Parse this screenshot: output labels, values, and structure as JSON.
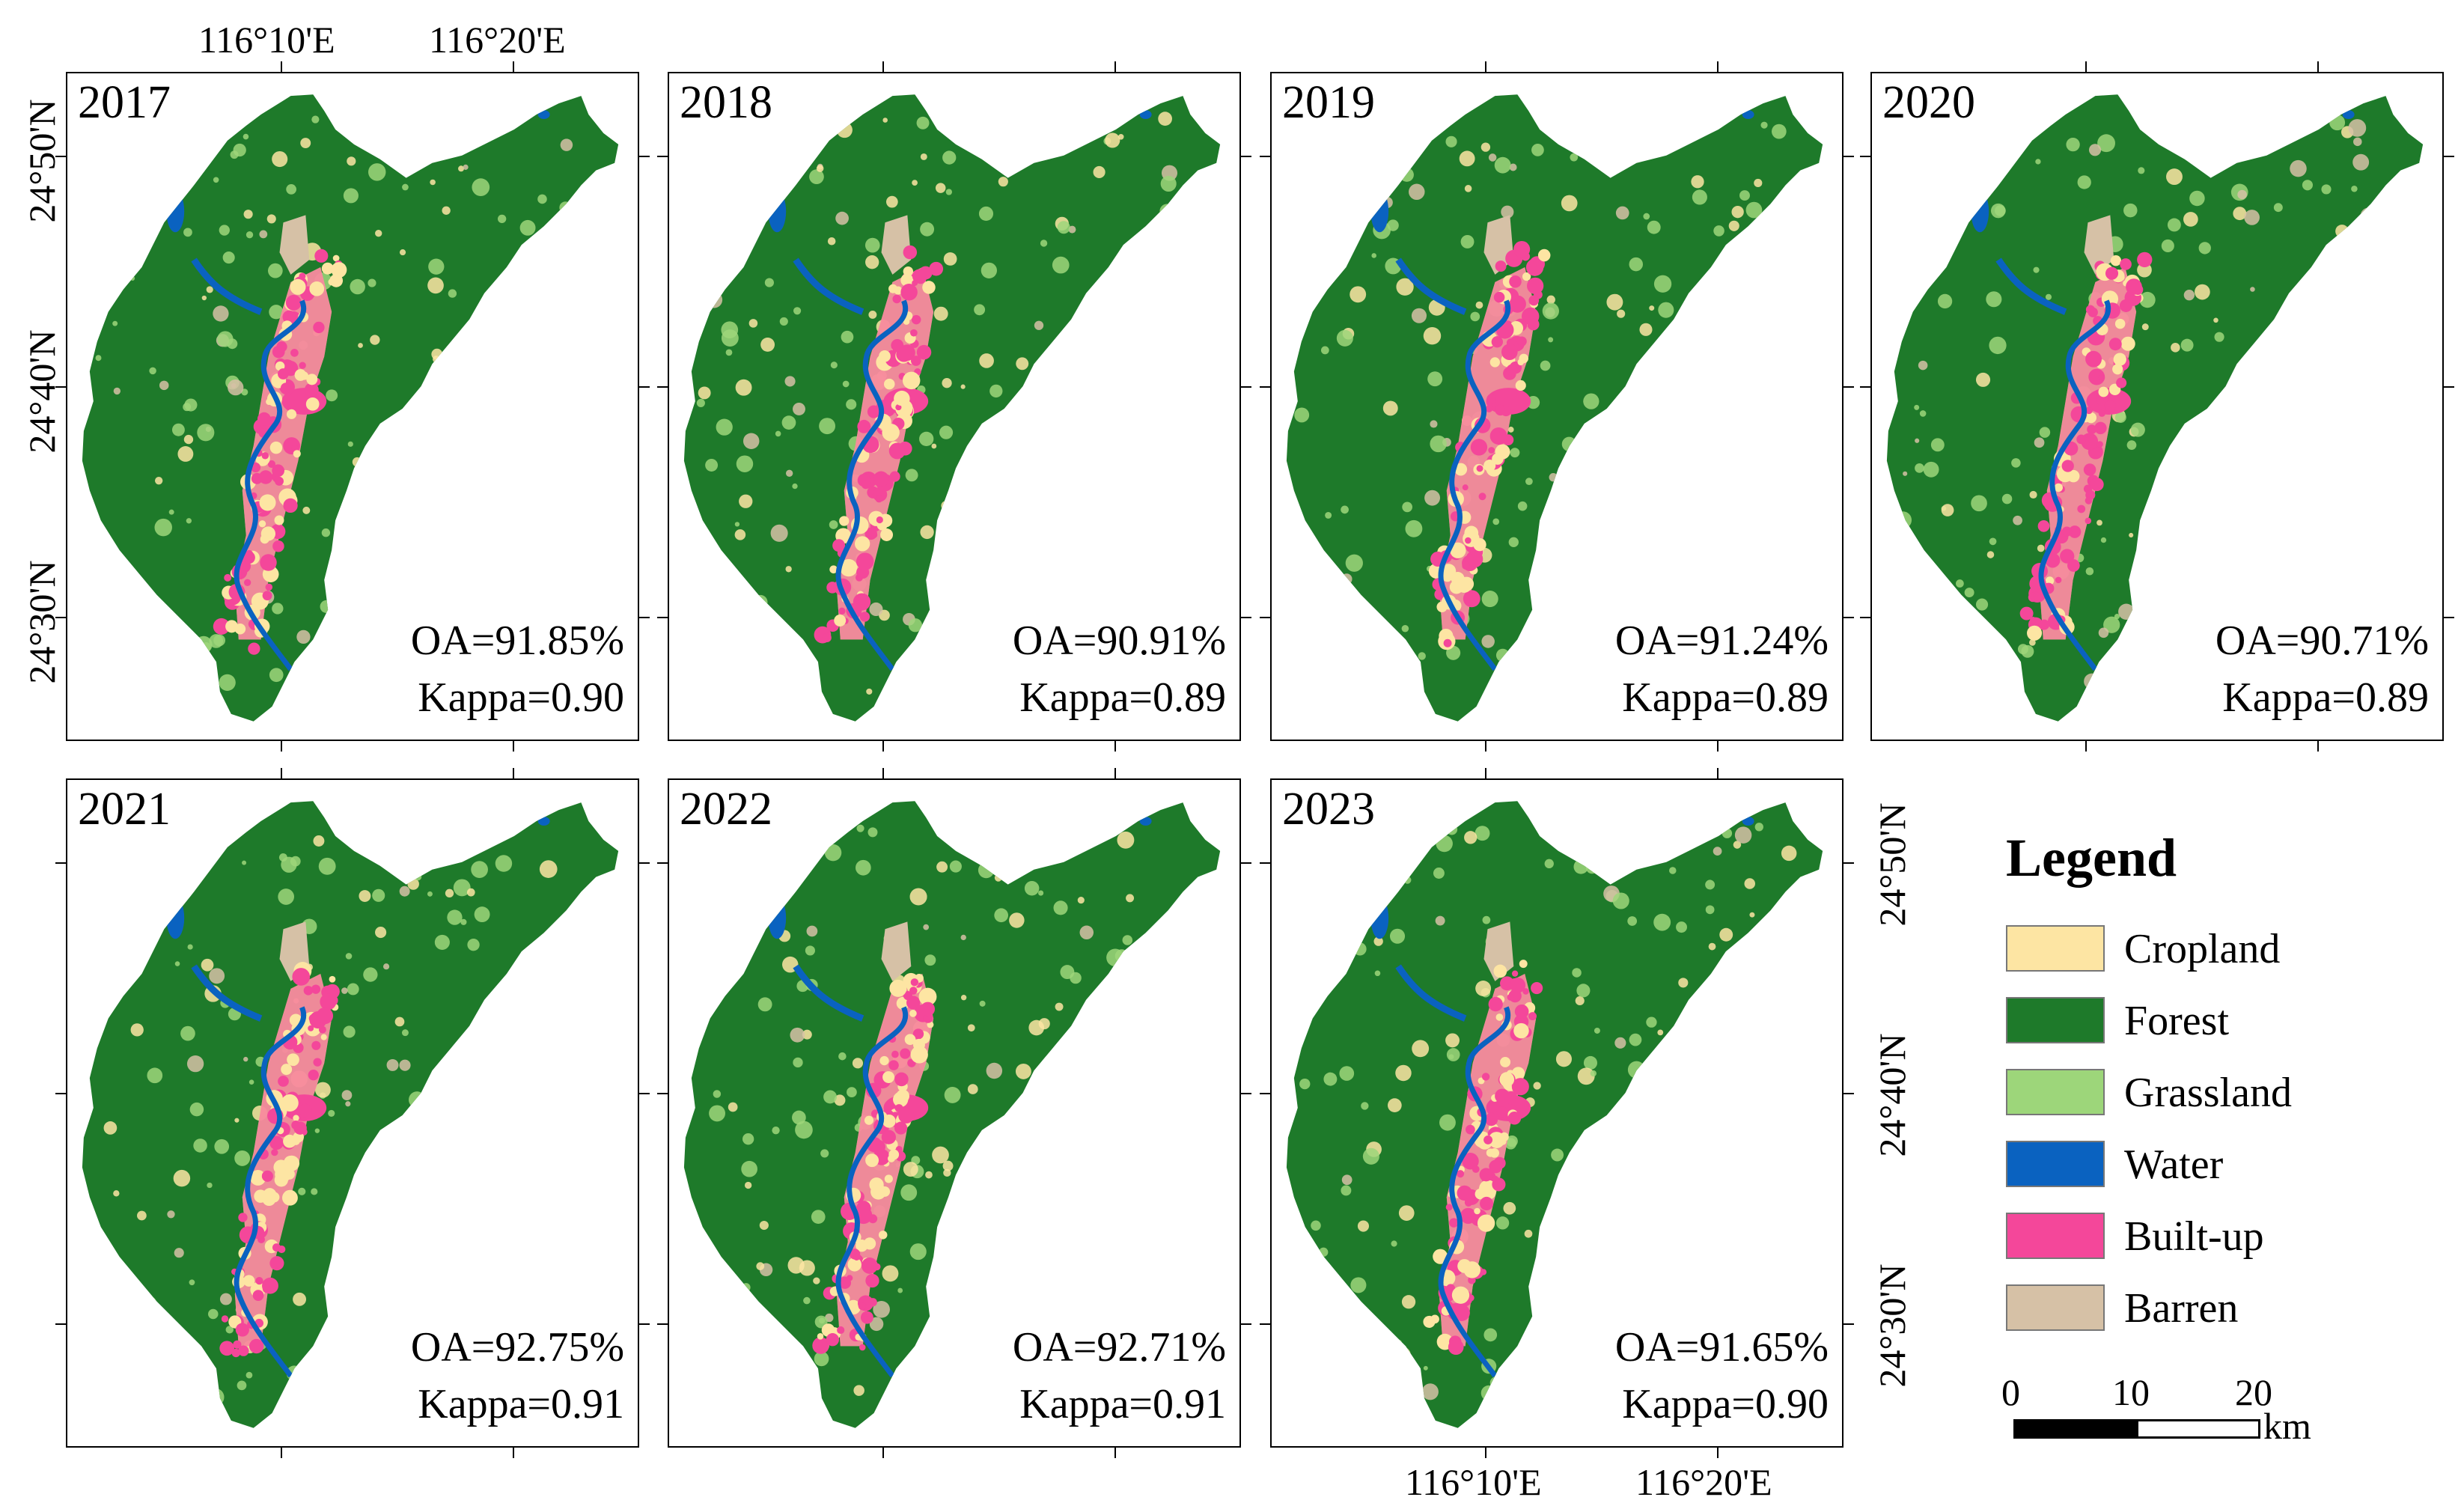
{
  "panels": [
    {
      "year": "2017",
      "oa": "OA=91.85%",
      "kappa": "Kappa=0.90"
    },
    {
      "year": "2018",
      "oa": "OA=90.91%",
      "kappa": "Kappa=0.89"
    },
    {
      "year": "2019",
      "oa": "OA=91.24%",
      "kappa": "Kappa=0.89"
    },
    {
      "year": "2020",
      "oa": "OA=90.71%",
      "kappa": "Kappa=0.89"
    },
    {
      "year": "2021",
      "oa": "OA=92.75%",
      "kappa": "Kappa=0.91"
    },
    {
      "year": "2022",
      "oa": "OA=92.71%",
      "kappa": "Kappa=0.91"
    },
    {
      "year": "2023",
      "oa": "OA=91.65%",
      "kappa": "Kappa=0.90"
    }
  ],
  "graticule": {
    "lon_labels": [
      "116°10'E",
      "116°20'E"
    ],
    "lat_labels": [
      "24°50'N",
      "24°40'N",
      "24°30'N"
    ]
  },
  "legend": {
    "title": "Legend",
    "items": [
      {
        "label": "Cropland",
        "color": "#fde5a3"
      },
      {
        "label": "Forest",
        "color": "#1e7a2a"
      },
      {
        "label": "Grassland",
        "color": "#9dd67a"
      },
      {
        "label": "Water",
        "color": "#0a62c0"
      },
      {
        "label": "Built-up",
        "color": "#f4479a"
      },
      {
        "label": "Barren",
        "color": "#d6c1a6"
      }
    ]
  },
  "scale_bar": {
    "ticks": [
      "0",
      "10",
      "20"
    ],
    "unit": "km"
  }
}
